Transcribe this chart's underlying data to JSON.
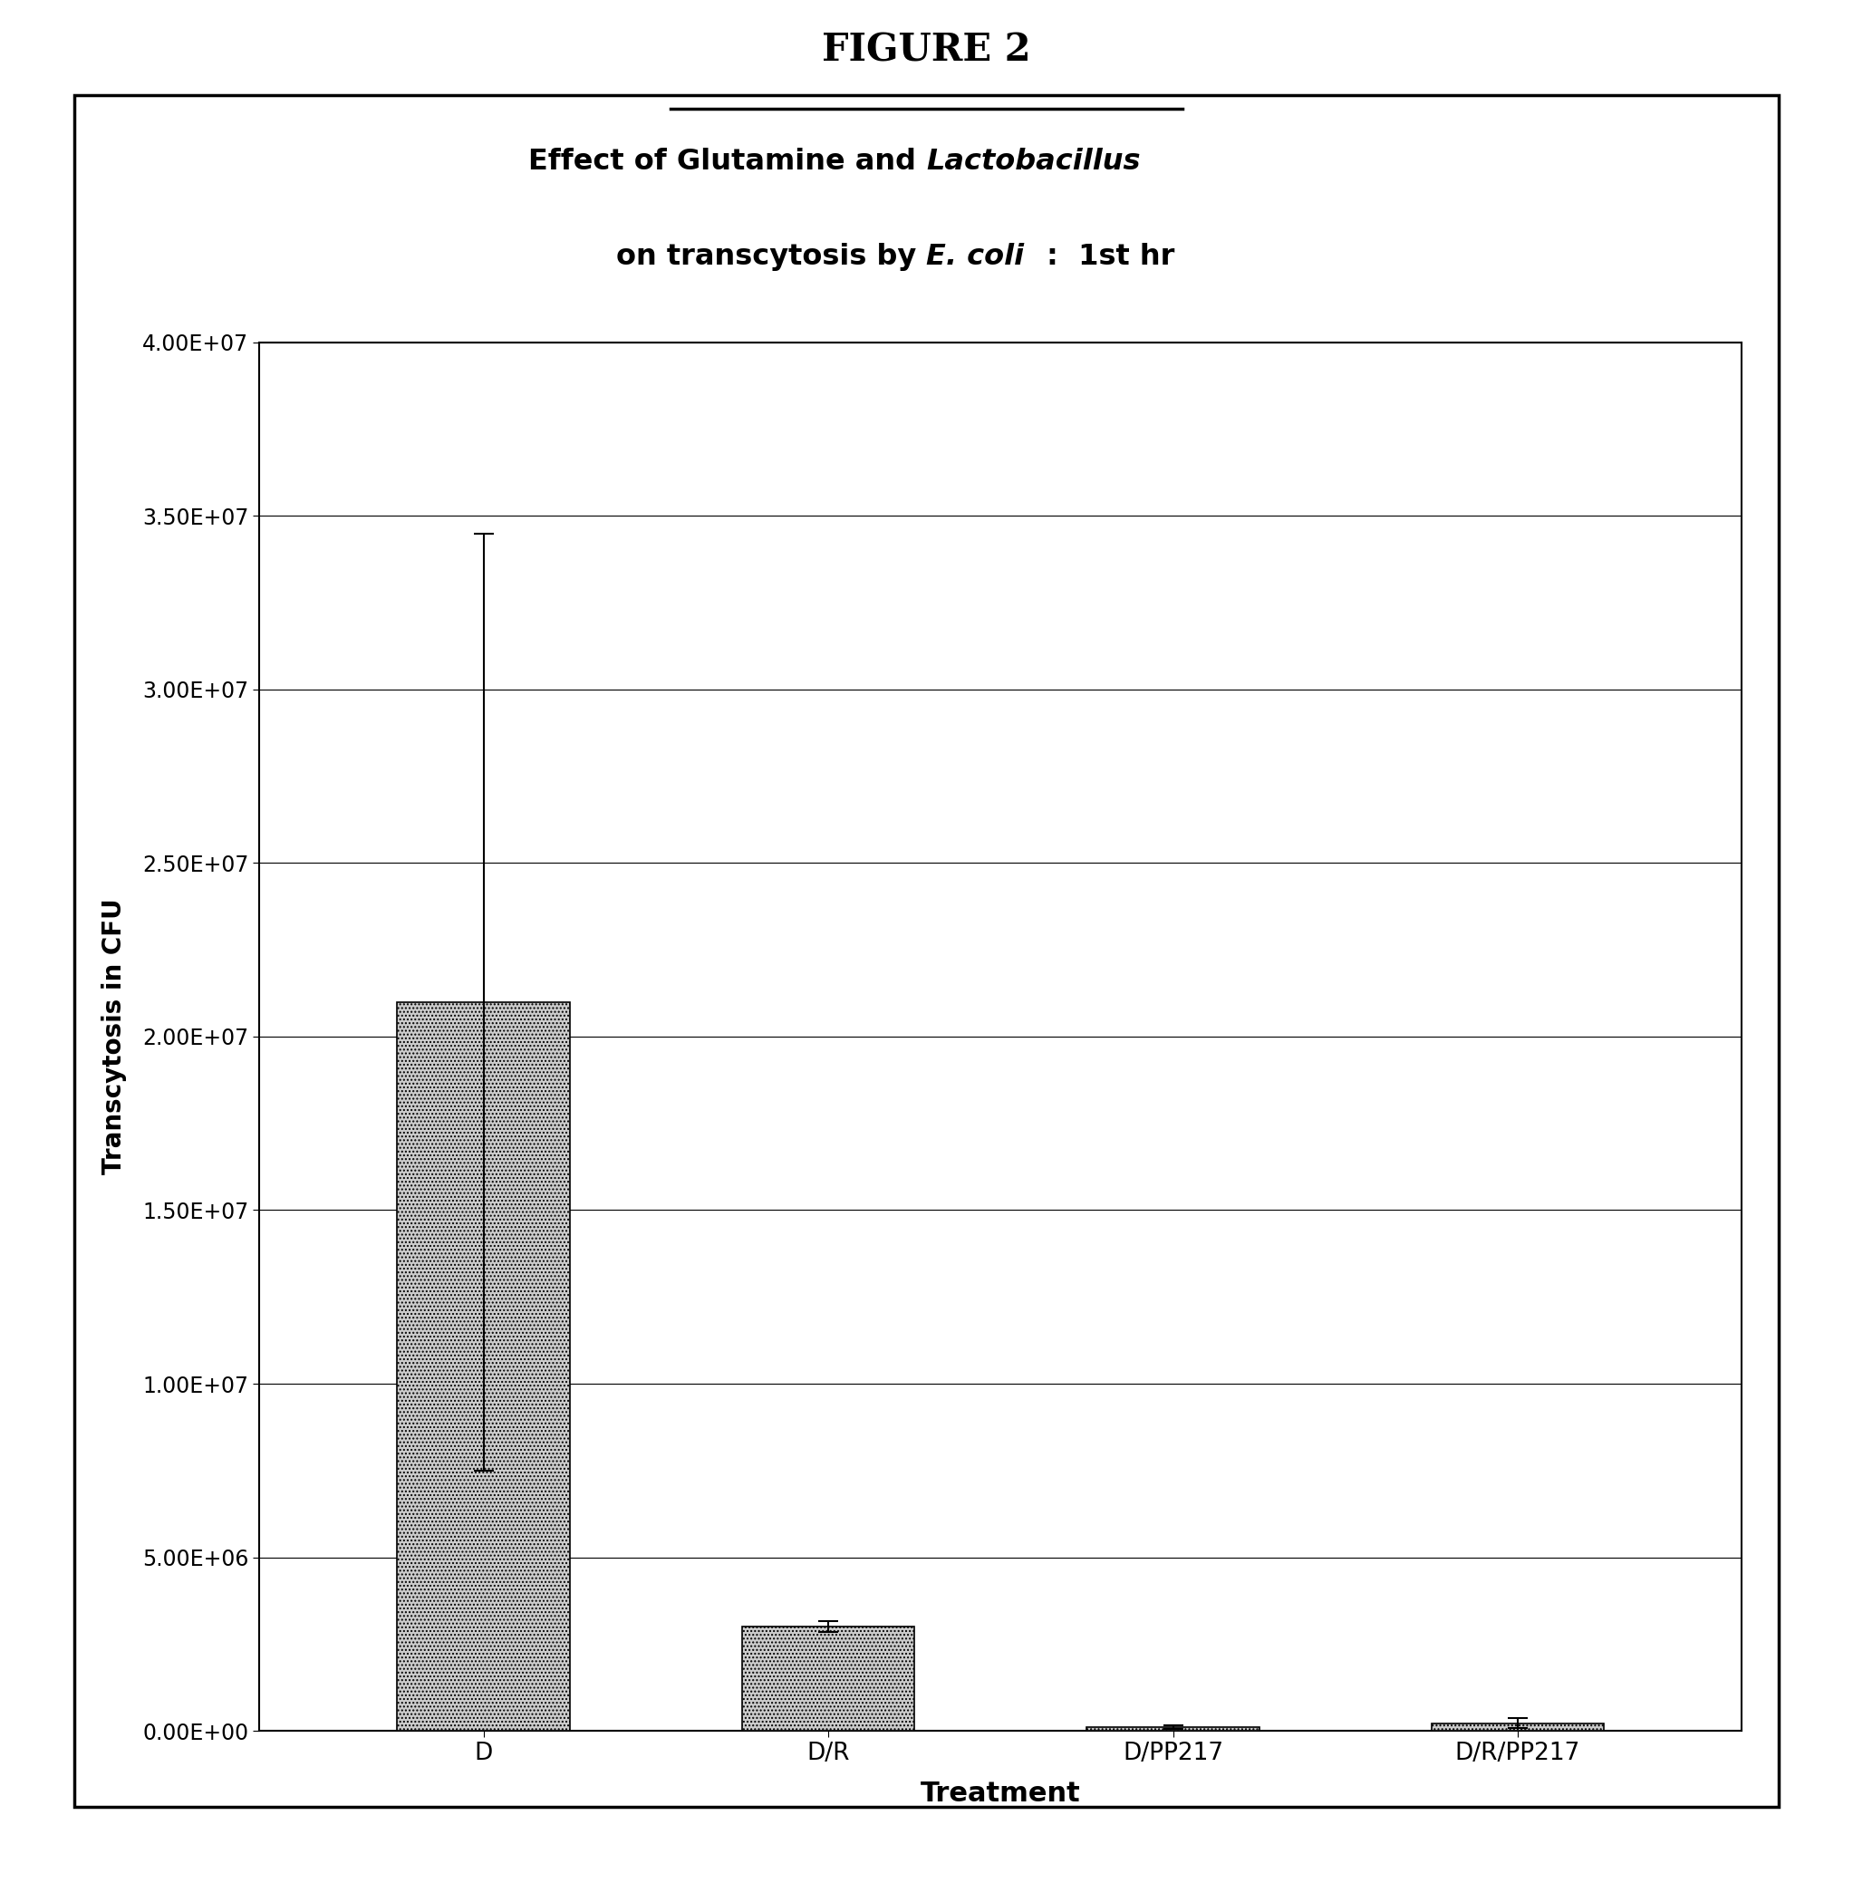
{
  "categories": [
    "D",
    "D/R",
    "D/PP217",
    "D/R/PP217"
  ],
  "values": [
    21000000.0,
    3000000.0,
    100000.0,
    220000.0
  ],
  "error_bars": [
    13500000.0,
    150000.0,
    50000.0,
    150000.0
  ],
  "ylim": [
    0,
    40000000.0
  ],
  "yticks": [
    0,
    5000000,
    10000000,
    15000000,
    20000000,
    25000000,
    30000000,
    35000000,
    40000000
  ],
  "ytick_labels": [
    "0.00E+00",
    "5.00E+06",
    "1.00E+07",
    "1.50E+07",
    "2.00E+07",
    "2.50E+07",
    "3.00E+07",
    "3.50E+07",
    "4.00E+07"
  ],
  "ylabel": "Transcytosis in CFU",
  "xlabel": "Treatment",
  "figure_title": "FIGURE 2",
  "bar_color": "#cccccc",
  "bar_edgecolor": "#000000",
  "background_color": "#ffffff",
  "bar_width": 0.5,
  "title_fontsize": 23,
  "axis_label_fontsize": 20,
  "tick_fontsize": 17,
  "figure_title_fontsize": 30,
  "title_line1_normal": "Effect of Glutamine and ",
  "title_line1_italic": "Lactobacillus",
  "title_line2_normal": "on transcytosis by ",
  "title_line2_italic": "E. coli",
  "title_line2_rest": ":  1st hr"
}
